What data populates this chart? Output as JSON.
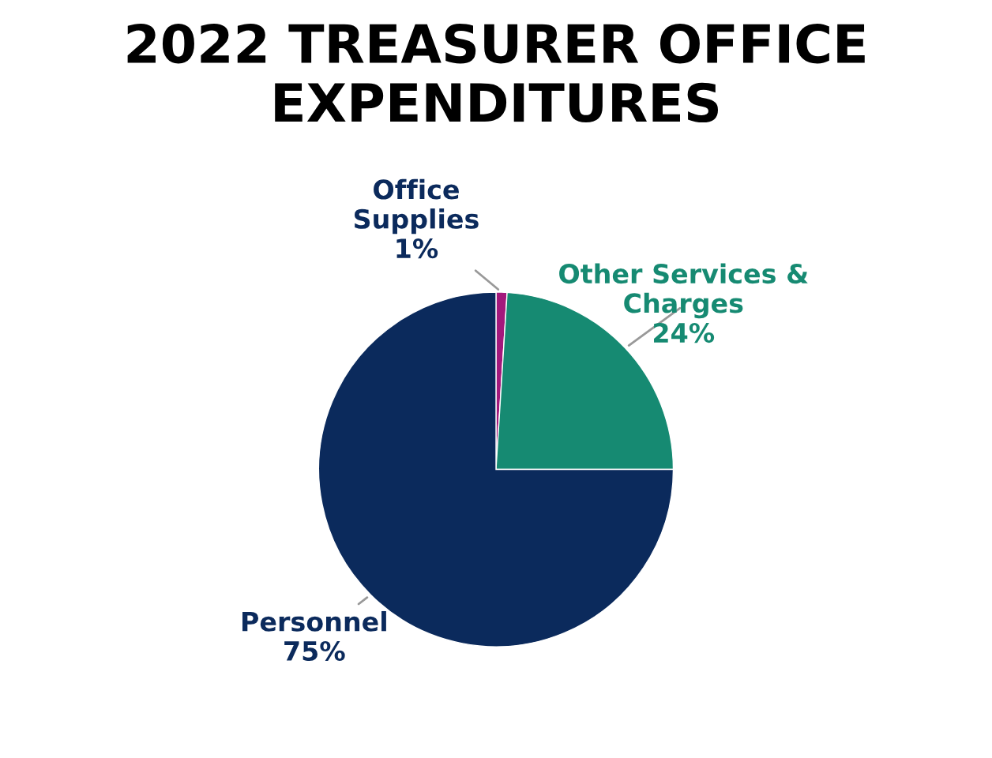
{
  "chart_data": {
    "type": "pie",
    "title": "2022 TREASURER OFFICE EXPENDITURES",
    "categories": [
      "Office Supplies",
      "Other Services & Charges",
      "Personnel"
    ],
    "values": [
      1,
      24,
      75
    ],
    "value_labels": [
      "1%",
      "24%",
      "75%"
    ],
    "colors": [
      "#a3197c",
      "#168a72",
      "#0b2a5c"
    ],
    "legend": false
  }
}
